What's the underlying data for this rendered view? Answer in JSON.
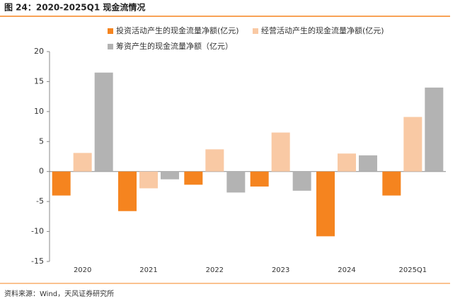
{
  "title": "图 24：2020-2025Q1 现金流情况",
  "source": "资料来源：Wind，天风证券研究所",
  "chart_data": {
    "type": "bar",
    "categories": [
      "2020",
      "2021",
      "2022",
      "2023",
      "2024",
      "2025Q1"
    ],
    "series": [
      {
        "name": "投资活动产生的现金流量净额(亿元)",
        "color": "#f5841f",
        "values": [
          -4.0,
          -6.6,
          -2.2,
          -2.5,
          -10.8,
          -4.0
        ]
      },
      {
        "name": "经营活动产生的现金流量净额(亿元)",
        "color": "#f9c9a4",
        "values": [
          3.1,
          -2.8,
          3.7,
          6.5,
          3.0,
          9.1
        ]
      },
      {
        "name": "筹资产生的现金流量净额（亿元）",
        "color": "#b3b3b3",
        "values": [
          16.5,
          -1.3,
          -3.5,
          -3.2,
          2.7,
          14.0
        ]
      }
    ],
    "ylim": [
      -15,
      20
    ],
    "yticks": [
      -15,
      -10,
      -5,
      0,
      5,
      10,
      15,
      20
    ]
  }
}
